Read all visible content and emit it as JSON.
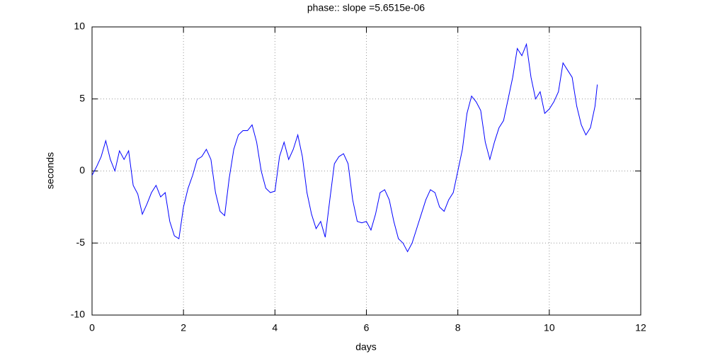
{
  "chart_data": {
    "type": "line",
    "title": "phase:: slope =5.6515e-06",
    "x_label": "days",
    "y_label": "seconds",
    "x": [
      0,
      0.1,
      0.2,
      0.3,
      0.4,
      0.5,
      0.6,
      0.7,
      0.8,
      0.9,
      1.0,
      1.1,
      1.2,
      1.3,
      1.4,
      1.5,
      1.6,
      1.7,
      1.8,
      1.9,
      2.0,
      2.1,
      2.2,
      2.3,
      2.4,
      2.5,
      2.6,
      2.7,
      2.8,
      2.9,
      3.0,
      3.1,
      3.2,
      3.3,
      3.4,
      3.5,
      3.6,
      3.7,
      3.8,
      3.9,
      4.0,
      4.1,
      4.2,
      4.3,
      4.4,
      4.5,
      4.6,
      4.7,
      4.8,
      4.9,
      5.0,
      5.1,
      5.2,
      5.3,
      5.4,
      5.5,
      5.6,
      5.7,
      5.8,
      5.9,
      6.0,
      6.1,
      6.2,
      6.3,
      6.4,
      6.5,
      6.6,
      6.7,
      6.8,
      6.9,
      7.0,
      7.1,
      7.2,
      7.3,
      7.4,
      7.5,
      7.6,
      7.7,
      7.8,
      7.9,
      8.0,
      8.1,
      8.2,
      8.3,
      8.4,
      8.5,
      8.6,
      8.7,
      8.8,
      8.9,
      9.0,
      9.1,
      9.2,
      9.3,
      9.4,
      9.5,
      9.6,
      9.7,
      9.8,
      9.9,
      10.0,
      10.1,
      10.2,
      10.3,
      10.4,
      10.5,
      10.6,
      10.7,
      10.8,
      10.9,
      11.0,
      11.05
    ],
    "series": [
      {
        "name": "phase",
        "color": "#0000ff",
        "values": [
          -0.3,
          0.3,
          1.0,
          2.1,
          0.8,
          0.0,
          1.4,
          0.8,
          1.4,
          -1.0,
          -1.6,
          -3.0,
          -2.3,
          -1.5,
          -1.0,
          -1.8,
          -1.5,
          -3.5,
          -4.5,
          -4.7,
          -2.5,
          -1.2,
          -0.3,
          0.8,
          1.0,
          1.5,
          0.8,
          -1.5,
          -2.8,
          -3.1,
          -0.5,
          1.5,
          2.5,
          2.8,
          2.8,
          3.2,
          2.0,
          0.0,
          -1.2,
          -1.5,
          -1.4,
          1.0,
          2.0,
          0.8,
          1.5,
          2.5,
          1.0,
          -1.5,
          -3.0,
          -4.0,
          -3.5,
          -4.6,
          -2.0,
          0.5,
          1.0,
          1.2,
          0.5,
          -2.0,
          -3.5,
          -3.6,
          -3.5,
          -4.1,
          -3.0,
          -1.5,
          -1.3,
          -2.0,
          -3.5,
          -4.7,
          -5.0,
          -5.6,
          -5.0,
          -4.0,
          -3.0,
          -2.0,
          -1.3,
          -1.5,
          -2.5,
          -2.8,
          -2.0,
          -1.5,
          0.0,
          1.5,
          4.0,
          5.2,
          4.8,
          4.2,
          2.0,
          0.8,
          2.0,
          3.0,
          3.5,
          5.0,
          6.5,
          8.5,
          8.0,
          8.8,
          6.5,
          5.0,
          5.5,
          4.0,
          4.3,
          4.8,
          5.5,
          7.5,
          7.0,
          6.5,
          4.5,
          3.2,
          2.5,
          3.0,
          4.5,
          6.0
        ]
      }
    ],
    "xlim": [
      0,
      12
    ],
    "xticks": [
      0,
      2,
      4,
      6,
      8,
      10,
      12
    ],
    "ylim": [
      -10,
      10
    ],
    "yticks": [
      -10,
      -5,
      0,
      5,
      10
    ],
    "grid": true
  }
}
